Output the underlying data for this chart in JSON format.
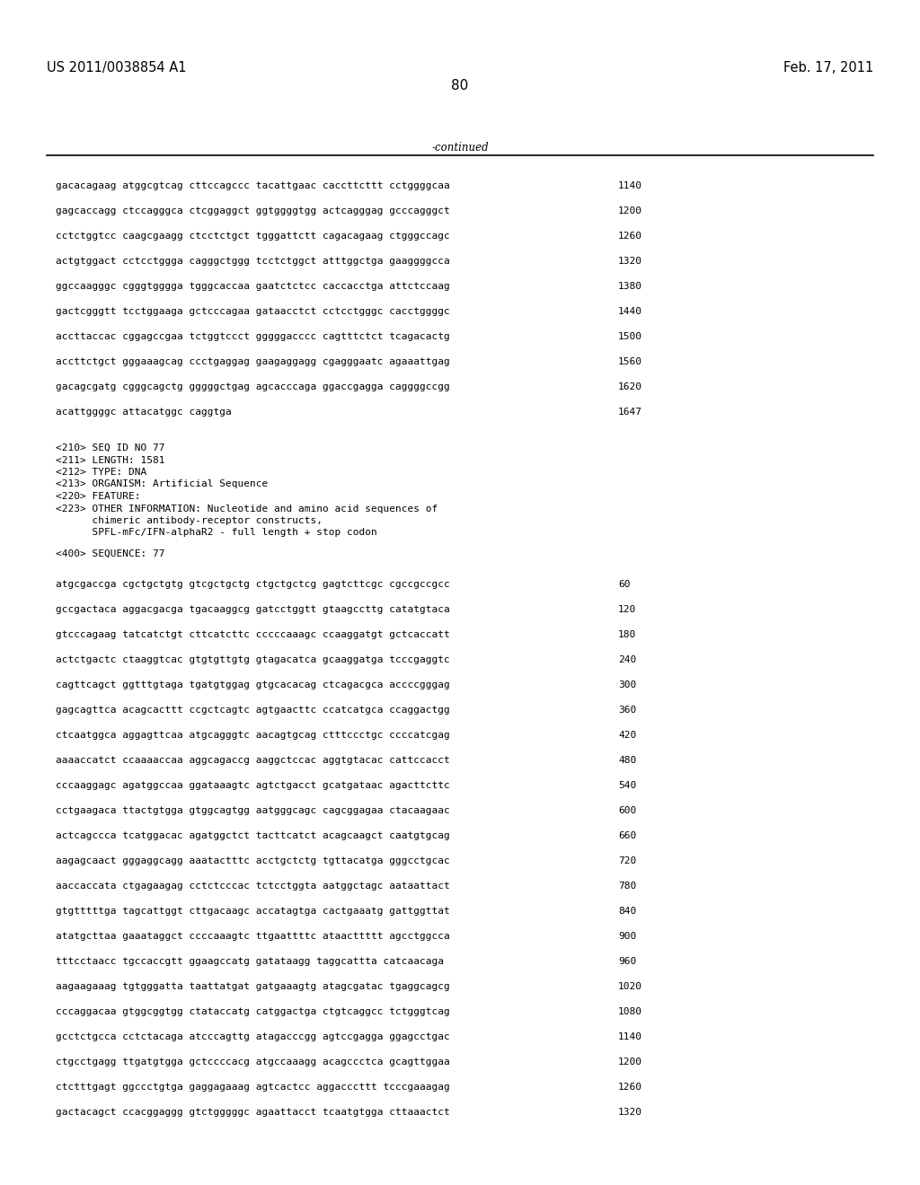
{
  "header_left": "US 2011/0038854 A1",
  "header_right": "Feb. 17, 2011",
  "page_number": "80",
  "continued_label": "-continued",
  "background_color": "#ffffff",
  "text_color": "#000000",
  "font_size_header": 10.5,
  "font_size_body": 8.0,
  "font_size_page": 11,
  "sequence_lines_top": [
    [
      "gacacagaag atggcgtcag cttccagccc tacattgaac caccttcttt cctggggcaa",
      "1140"
    ],
    [
      "gagcaccagg ctccagggca ctcggaggct ggtggggtgg actcagggag gcccagggct",
      "1200"
    ],
    [
      "cctctggtcc caagcgaagg ctcctctgct tgggattctt cagacagaag ctgggccagc",
      "1260"
    ],
    [
      "actgtggact cctcctggga cagggctggg tcctctggct atttggctga gaaggggcca",
      "1320"
    ],
    [
      "ggccaagggc cgggtgggga tgggcaccaa gaatctctcc caccacctga attctccaag",
      "1380"
    ],
    [
      "gactcgggtt tcctggaaga gctcccagaa gataacctct cctcctgggc cacctggggc",
      "1440"
    ],
    [
      "accttaccac cggagccgaa tctggtccct gggggacccc cagtttctct tcagacactg",
      "1500"
    ],
    [
      "accttctgct gggaaagcag ccctgaggag gaagaggagg cgagggaatc agaaattgag",
      "1560"
    ],
    [
      "gacagcgatg cgggcagctg gggggctgag agcacccaga ggaccgagga caggggccgg",
      "1620"
    ],
    [
      "acattggggc attacatggc caggtga",
      "1647"
    ]
  ],
  "metadata_lines": [
    "<210> SEQ ID NO 77",
    "<211> LENGTH: 1581",
    "<212> TYPE: DNA",
    "<213> ORGANISM: Artificial Sequence",
    "<220> FEATURE:",
    "<223> OTHER INFORMATION: Nucleotide and amino acid sequences of",
    "      chimeric antibody-receptor constructs,",
    "      SPFL-mFc/IFN-alphaR2 - full length + stop codon"
  ],
  "sequence400_label": "<400> SEQUENCE: 77",
  "sequence_lines_bottom": [
    [
      "atgcgaccga cgctgctgtg gtcgctgctg ctgctgctcg gagtcttcgc cgccgccgcc",
      "60"
    ],
    [
      "gccgactaca aggacgacga tgacaaggcg gatcctggtt gtaagccttg catatgtaca",
      "120"
    ],
    [
      "gtcccagaag tatcatctgt cttcatcttc cccccaaagc ccaaggatgt gctcaccatt",
      "180"
    ],
    [
      "actctgactc ctaaggtcac gtgtgttgtg gtagacatca gcaaggatga tcccgaggtc",
      "240"
    ],
    [
      "cagttcagct ggtttgtaga tgatgtggag gtgcacacag ctcagacgca accccgggag",
      "300"
    ],
    [
      "gagcagttca acagcacttt ccgctcagtc agtgaacttc ccatcatgca ccaggactgg",
      "360"
    ],
    [
      "ctcaatggca aggagttcaa atgcagggtc aacagtgcag ctttccctgc ccccatcgag",
      "420"
    ],
    [
      "aaaaccatct ccaaaaccaa aggcagaccg aaggctccac aggtgtacac cattccacct",
      "480"
    ],
    [
      "cccaaggagc agatggccaa ggataaagtc agtctgacct gcatgataac agacttcttc",
      "540"
    ],
    [
      "cctgaagaca ttactgtgga gtggcagtgg aatgggcagc cagcggagaa ctacaagaac",
      "600"
    ],
    [
      "actcagccca tcatggacac agatggctct tacttcatct acagcaagct caatgtgcag",
      "660"
    ],
    [
      "aagagcaact gggaggcagg aaatactttc acctgctctg tgttacatga gggcctgcac",
      "720"
    ],
    [
      "aaccaccata ctgagaagag cctctcccac tctcctggta aatggctagc aataattact",
      "780"
    ],
    [
      "gtgtttttga tagcattggt cttgacaagc accatagtga cactgaaatg gattggttat",
      "840"
    ],
    [
      "atatgcttaa gaaataggct ccccaaagtc ttgaattttc ataacttttt agcctggcca",
      "900"
    ],
    [
      "tttcctaacc tgccaccgtt ggaagccatg gatataagg taggcattta catcaacaga",
      "960"
    ],
    [
      "aagaagaaag tgtgggatta taattatgat gatgaaagtg atagcgatac tgaggcagcg",
      "1020"
    ],
    [
      "cccaggacaa gtggcggtgg ctataccatg catggactga ctgtcaggcc tctgggtcag",
      "1080"
    ],
    [
      "gcctctgcca cctctacaga atcccagttg atagacccgg agtccgagga ggagcctgac",
      "1140"
    ],
    [
      "ctgcctgagg ttgatgtgga gctccccacg atgccaaagg acagccctca gcagttggaa",
      "1200"
    ],
    [
      "ctctttgagt ggccctgtga gaggagaaag agtcactcc aggacccttt tcccgaaagag",
      "1260"
    ],
    [
      "gactacagct ccacggaggg gtctgggggc agaattacct tcaatgtgga cttaaactct",
      "1320"
    ]
  ]
}
